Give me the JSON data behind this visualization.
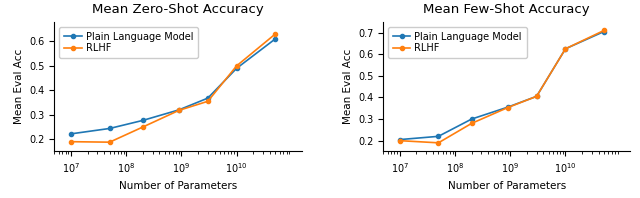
{
  "zero_shot": {
    "title": "Mean Zero-Shot Accuracy",
    "x": [
      10000000.0,
      50000000.0,
      200000000.0,
      900000000.0,
      3000000000.0,
      10000000000.0,
      50000000000.0
    ],
    "plain_lm_y": [
      0.222,
      0.244,
      0.277,
      0.32,
      0.368,
      0.49,
      0.61
    ],
    "rlhf_y": [
      0.19,
      0.188,
      0.25,
      0.318,
      0.355,
      0.5,
      0.63
    ],
    "ylim": [
      0.15,
      0.68
    ]
  },
  "few_shot": {
    "title": "Mean Few-Shot Accuracy",
    "x": [
      10000000.0,
      50000000.0,
      200000000.0,
      900000000.0,
      3000000000.0,
      10000000000.0,
      50000000000.0
    ],
    "plain_lm_y": [
      0.205,
      0.22,
      0.3,
      0.355,
      0.405,
      0.625,
      0.705
    ],
    "rlhf_y": [
      0.2,
      0.19,
      0.28,
      0.353,
      0.405,
      0.625,
      0.71
    ],
    "ylim": [
      0.15,
      0.75
    ]
  },
  "xlabel": "Number of Parameters",
  "ylabel": "Mean Eval Acc",
  "legend_plain": "Plain Language Model",
  "legend_rlhf": "RLHF",
  "color_plain": "#1f77b4",
  "color_rlhf": "#ff7f0e",
  "title_fontsize": 9.5,
  "label_fontsize": 7.5,
  "tick_fontsize": 7,
  "legend_fontsize": 7,
  "xticks": [
    10000000.0,
    100000000.0,
    1000000000.0,
    10000000000.0
  ]
}
